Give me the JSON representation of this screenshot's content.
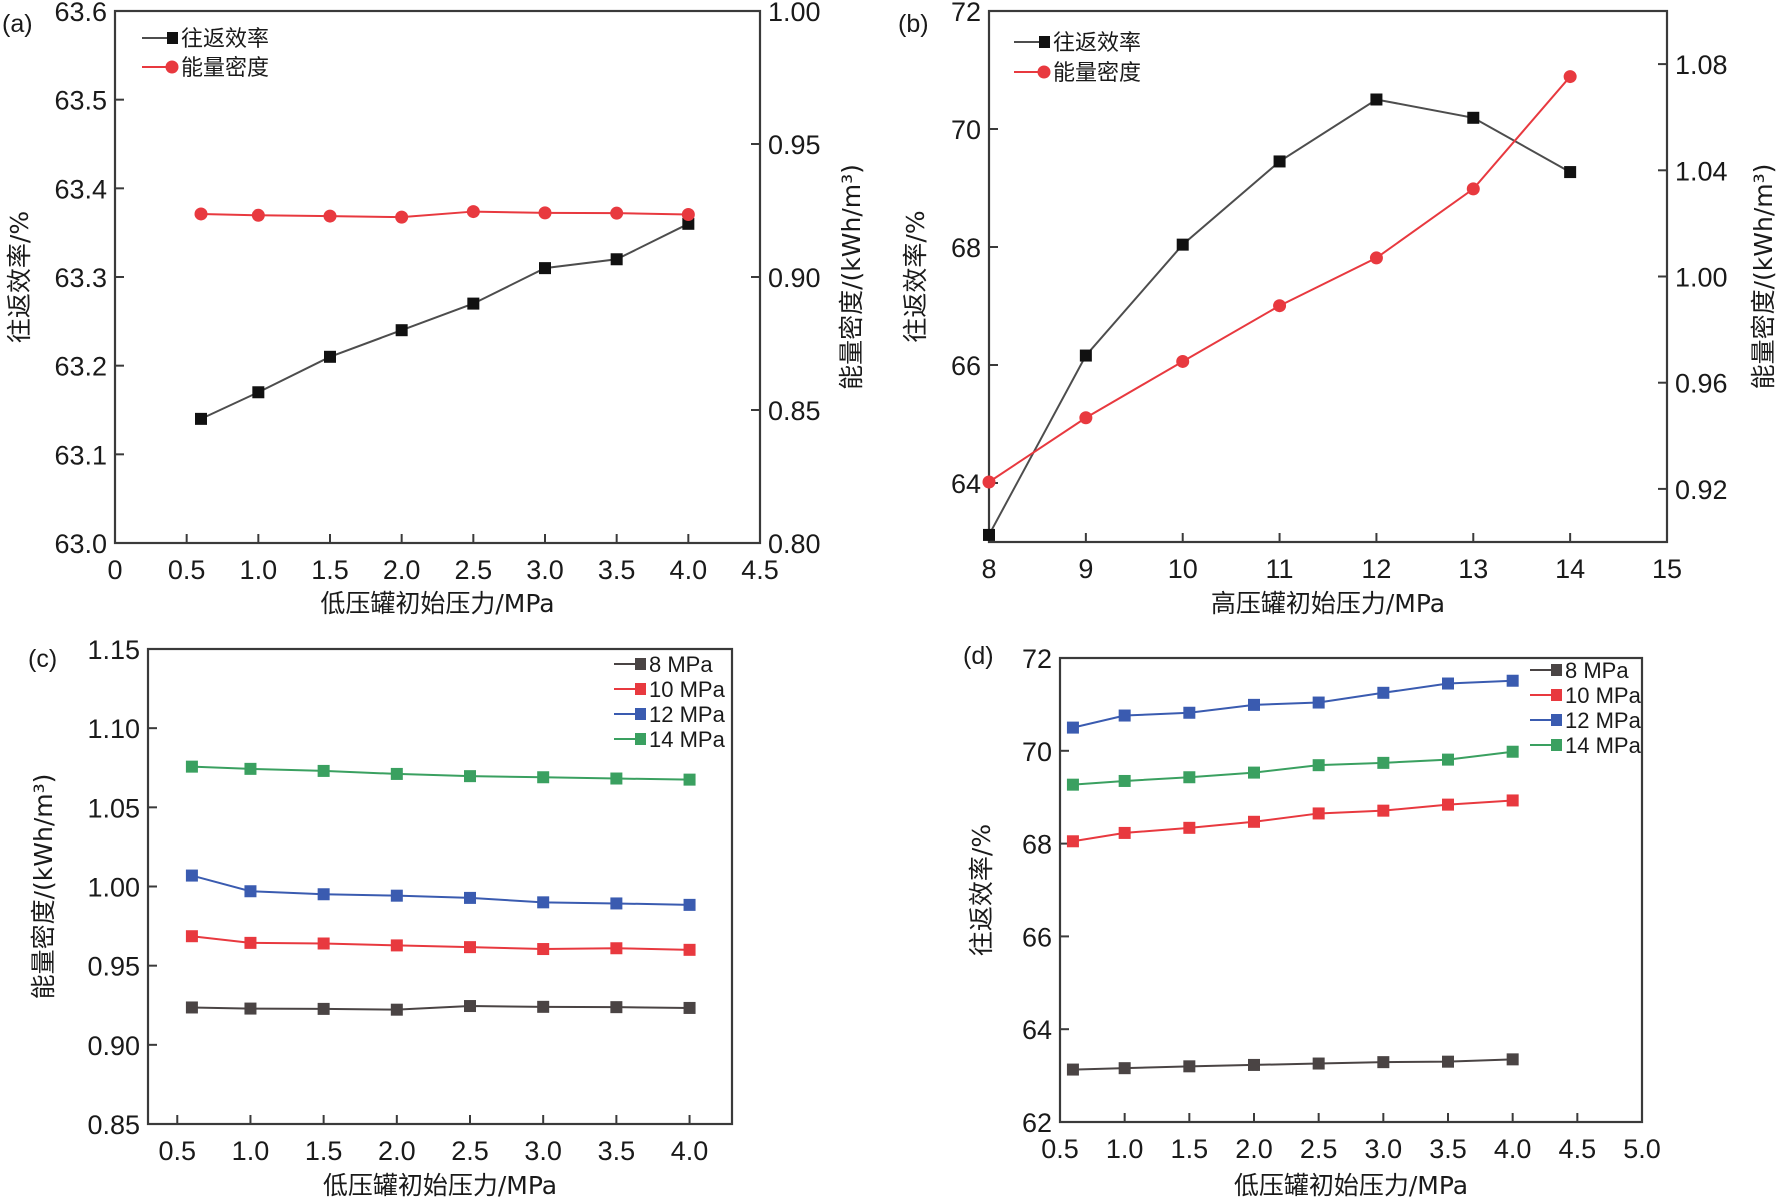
{
  "chart_data": [
    {
      "id": "a",
      "panel_label": "(a)",
      "type": "line",
      "xlabel": "低压罐初始压力/MPa",
      "ylabel": "往返效率/%",
      "y2label": "能量密度/(kWh/m³)",
      "xlim": [
        0,
        4.5
      ],
      "xticks": [
        "0",
        "0.5",
        "1.0",
        "1.5",
        "2.0",
        "2.5",
        "3.0",
        "3.5",
        "4.0",
        "4.5"
      ],
      "xtick_values": [
        0,
        0.5,
        1.0,
        1.5,
        2.0,
        2.5,
        3.0,
        3.5,
        4.0,
        4.5
      ],
      "ylim": [
        63.0,
        63.6
      ],
      "yticks": [
        "63.0",
        "63.1",
        "63.2",
        "63.3",
        "63.4",
        "63.5",
        "63.6"
      ],
      "ytick_values": [
        63.0,
        63.1,
        63.2,
        63.3,
        63.4,
        63.5,
        63.6
      ],
      "y2lim": [
        0.8,
        1.0
      ],
      "y2ticks": [
        "0.80",
        "0.85",
        "0.90",
        "0.95",
        "1.00"
      ],
      "y2tick_values": [
        0.8,
        0.85,
        0.9,
        0.95,
        1.0
      ],
      "legend": "top-left",
      "x": [
        0.6,
        1.0,
        1.5,
        2.0,
        2.5,
        3.0,
        3.5,
        4.0
      ],
      "series": [
        {
          "name": "往返效率",
          "axis": "left",
          "marker": "square",
          "color": "#4d4d4d",
          "marker_color": "#111111",
          "values": [
            63.14,
            63.17,
            63.21,
            63.24,
            63.27,
            63.31,
            63.32,
            63.36
          ]
        },
        {
          "name": "能量密度",
          "axis": "right",
          "marker": "circle",
          "color": "#e8393f",
          "marker_color": "#e8393f",
          "values": [
            0.9237,
            0.9232,
            0.9229,
            0.9225,
            0.9246,
            0.9241,
            0.924,
            0.9235
          ]
        }
      ]
    },
    {
      "id": "b",
      "panel_label": "(b)",
      "type": "line",
      "xlabel": "高压罐初始压力/MPa",
      "ylabel": "往返效率/%",
      "y2label": "能量密度/(kWh/m³)",
      "xlim": [
        8,
        15
      ],
      "xticks": [
        "8",
        "9",
        "10",
        "11",
        "12",
        "13",
        "14",
        "15"
      ],
      "xtick_values": [
        8,
        9,
        10,
        11,
        12,
        13,
        14,
        15
      ],
      "ylim": [
        63,
        72
      ],
      "yticks": [
        "64",
        "66",
        "68",
        "70",
        "72"
      ],
      "ytick_values": [
        64,
        66,
        68,
        70,
        72
      ],
      "y2lim": [
        0.9,
        1.1
      ],
      "y2ticks": [
        "0.92",
        "0.96",
        "1.00",
        "1.04",
        "1.08"
      ],
      "y2tick_values": [
        0.92,
        0.96,
        1.0,
        1.04,
        1.08
      ],
      "legend": "top-left",
      "x": [
        8,
        9,
        10,
        11,
        12,
        13,
        14
      ],
      "series": [
        {
          "name": "往返效率",
          "axis": "left",
          "marker": "square",
          "color": "#4d4d4d",
          "marker_color": "#111111",
          "values": [
            63.12,
            66.16,
            68.04,
            69.45,
            70.5,
            70.19,
            69.27
          ]
        },
        {
          "name": "能量密度",
          "axis": "right",
          "marker": "circle",
          "color": "#e8393f",
          "marker_color": "#e8393f",
          "values": [
            0.9226,
            0.9468,
            0.968,
            0.989,
            1.007,
            1.033,
            1.0753
          ]
        }
      ]
    },
    {
      "id": "c",
      "panel_label": "(c)",
      "type": "line",
      "xlabel": "低压罐初始压力/MPa",
      "ylabel": "能量密度/(kWh/m³)",
      "xlim": [
        0.3,
        4.29
      ],
      "xticks": [
        "0.5",
        "1.0",
        "1.5",
        "2.0",
        "2.5",
        "3.0",
        "3.5",
        "4.0"
      ],
      "xtick_values": [
        0.5,
        1.0,
        1.5,
        2.0,
        2.5,
        3.0,
        3.5,
        4.0
      ],
      "ylim": [
        0.85,
        1.15
      ],
      "yticks": [
        "0.85",
        "0.90",
        "0.95",
        "1.00",
        "1.05",
        "1.10",
        "1.15"
      ],
      "ytick_values": [
        0.85,
        0.9,
        0.95,
        1.0,
        1.05,
        1.1,
        1.15
      ],
      "legend": "top-right",
      "x": [
        0.6,
        1.0,
        1.5,
        2.0,
        2.5,
        3.0,
        3.5,
        4.0
      ],
      "series": [
        {
          "name": "8 MPa",
          "color": "#4a4444",
          "marker": "square",
          "values": [
            0.9236,
            0.9229,
            0.9227,
            0.9222,
            0.9245,
            0.924,
            0.9238,
            0.9233
          ]
        },
        {
          "name": "10 MPa",
          "color": "#e8393f",
          "marker": "square",
          "values": [
            0.9686,
            0.9644,
            0.964,
            0.9628,
            0.9617,
            0.9605,
            0.961,
            0.96
          ]
        },
        {
          "name": "12 MPa",
          "color": "#3a5bb0",
          "marker": "square",
          "values": [
            1.0069,
            0.997,
            0.9951,
            0.9942,
            0.9928,
            0.99,
            0.9893,
            0.9884
          ]
        },
        {
          "name": "14 MPa",
          "color": "#3aa060",
          "marker": "square",
          "values": [
            1.0757,
            1.0743,
            1.073,
            1.0711,
            1.0697,
            1.069,
            1.0682,
            1.0675
          ]
        }
      ]
    },
    {
      "id": "d",
      "panel_label": "(d)",
      "type": "line",
      "xlabel": "低压罐初始压力/MPa",
      "ylabel": "往返效率/%",
      "xlim": [
        0.5,
        5.0
      ],
      "xticks": [
        "0.5",
        "1.0",
        "1.5",
        "2.0",
        "2.5",
        "3.0",
        "3.5",
        "4.0",
        "4.5",
        "5.0"
      ],
      "xtick_values": [
        0.5,
        1.0,
        1.5,
        2.0,
        2.5,
        3.0,
        3.5,
        4.0,
        4.5,
        5.0
      ],
      "ylim": [
        62,
        72
      ],
      "yticks": [
        "62",
        "64",
        "66",
        "68",
        "70",
        "72"
      ],
      "ytick_values": [
        62,
        64,
        66,
        68,
        70,
        72
      ],
      "legend": "top-right",
      "x": [
        0.6,
        1.0,
        1.5,
        2.0,
        2.5,
        3.0,
        3.5,
        4.0
      ],
      "series": [
        {
          "name": "8 MPa",
          "color": "#4a4444",
          "marker": "square",
          "values": [
            63.13,
            63.16,
            63.2,
            63.23,
            63.26,
            63.29,
            63.3,
            63.35
          ]
        },
        {
          "name": "10 MPa",
          "color": "#e8393f",
          "marker": "square",
          "values": [
            68.05,
            68.23,
            68.34,
            68.47,
            68.65,
            68.71,
            68.84,
            68.93
          ]
        },
        {
          "name": "12 MPa",
          "color": "#3a5bb0",
          "marker": "square",
          "values": [
            70.5,
            70.76,
            70.82,
            70.99,
            71.04,
            71.25,
            71.45,
            71.51
          ]
        },
        {
          "name": "14 MPa",
          "color": "#3aa060",
          "marker": "square",
          "values": [
            69.27,
            69.35,
            69.43,
            69.53,
            69.69,
            69.74,
            69.81,
            69.98
          ]
        }
      ]
    }
  ]
}
